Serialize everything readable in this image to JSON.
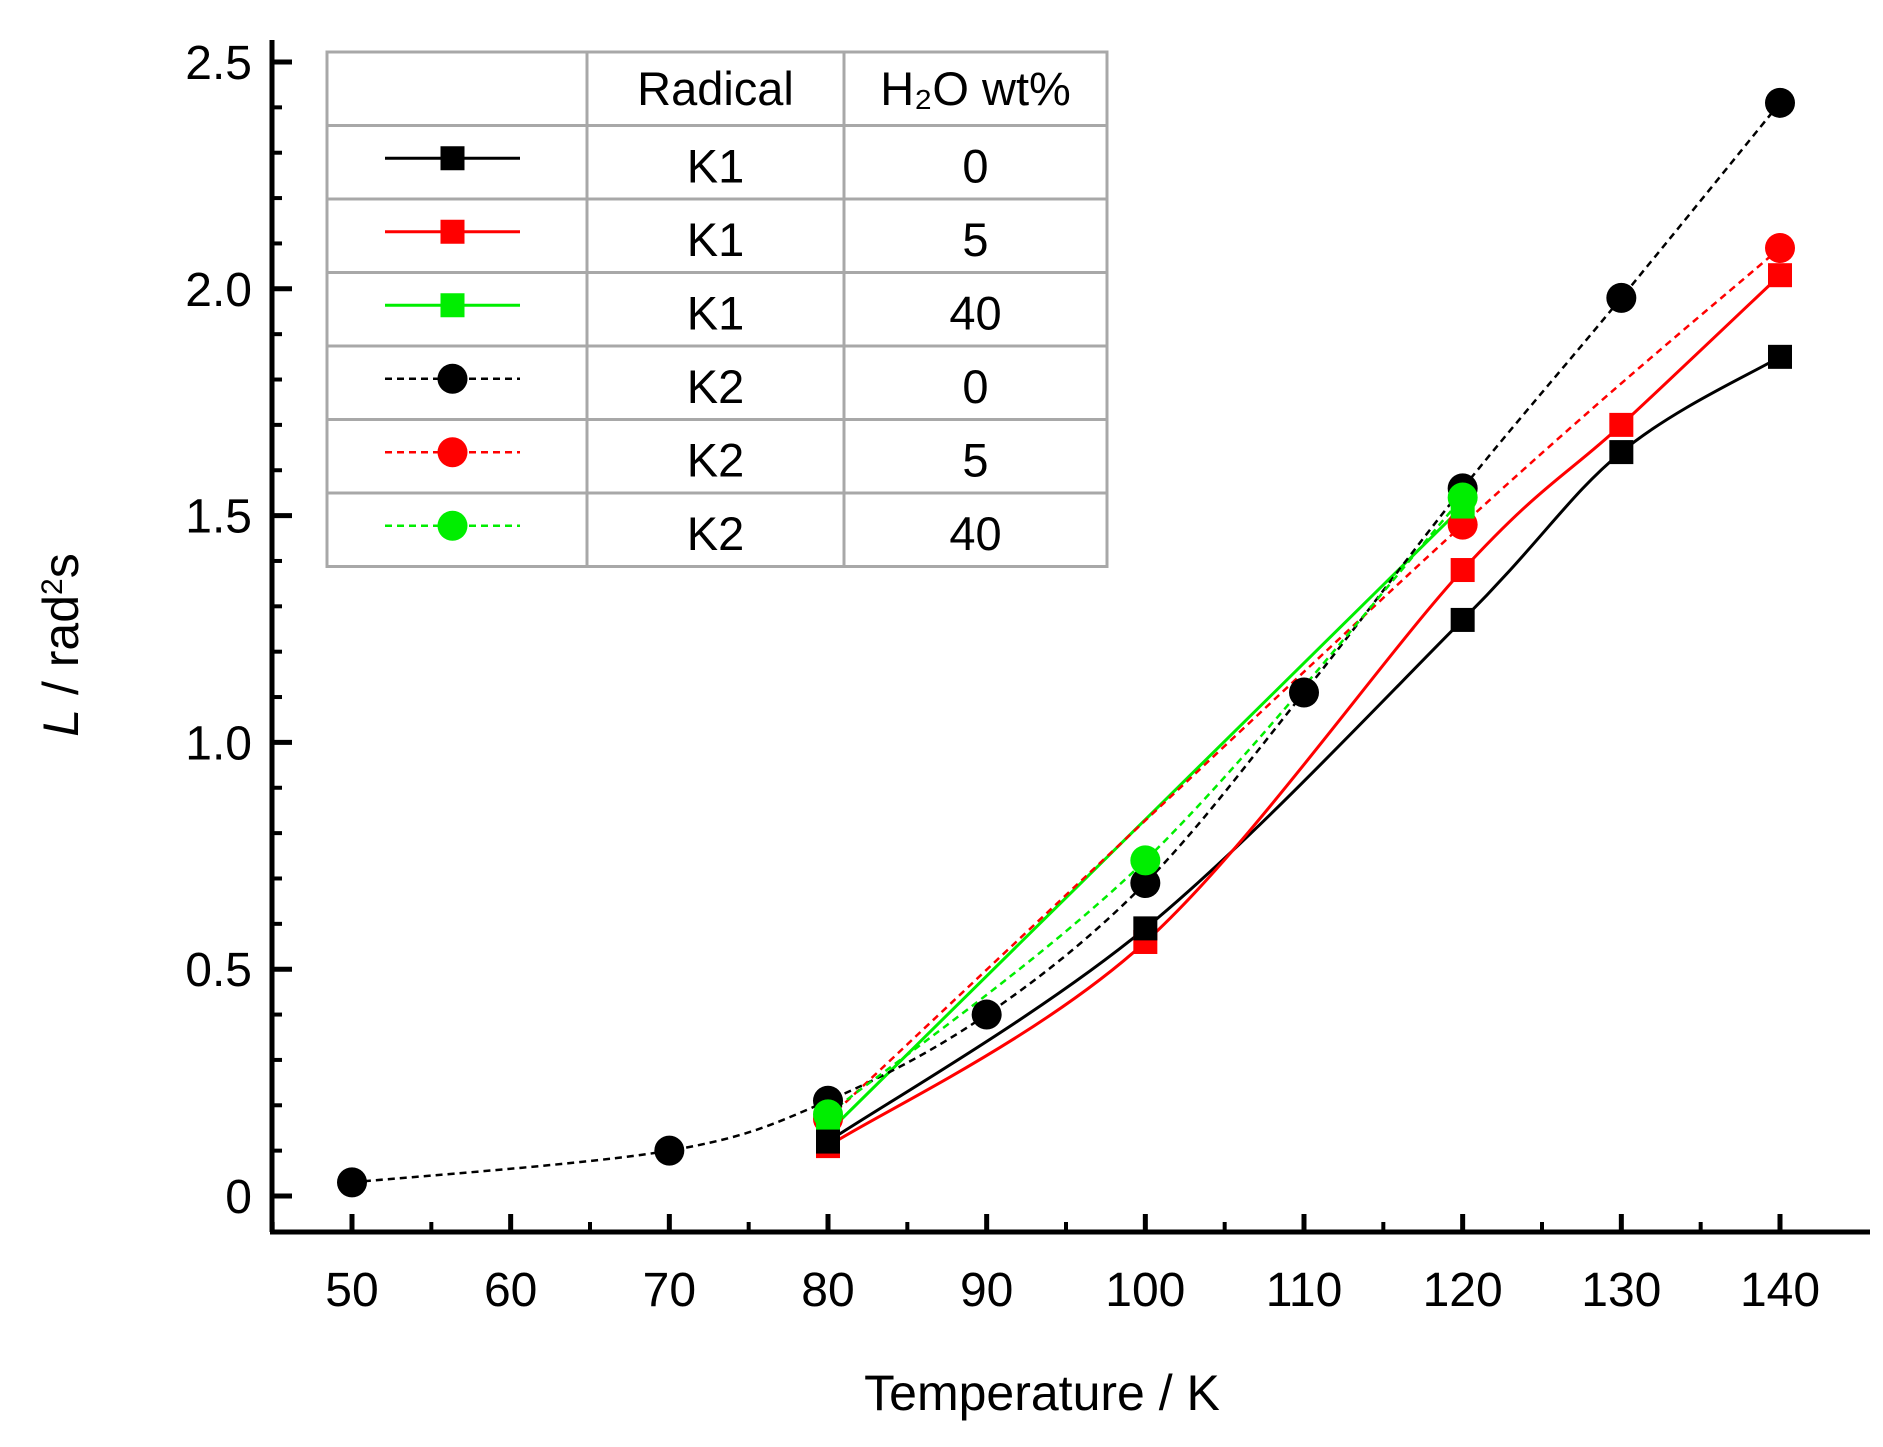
{
  "chart_data": {
    "type": "line",
    "title": "",
    "xlabel": "Temperature / K",
    "ylabel_italic": "L",
    "ylabel_rest": " / rad",
    "ylabel_sup": "2",
    "ylabel_tail": "s",
    "xlim": [
      45,
      143
    ],
    "ylim": [
      -0.08,
      2.55
    ],
    "xticks": [
      50,
      60,
      70,
      80,
      90,
      100,
      110,
      120,
      130,
      140
    ],
    "yticks": [
      0,
      0.5,
      1.0,
      1.5,
      2.0,
      2.5
    ],
    "xtick_labels": [
      "50",
      "60",
      "70",
      "80",
      "90",
      "100",
      "110",
      "120",
      "130",
      "140"
    ],
    "ytick_labels": [
      "0",
      "0.5",
      "1.0",
      "1.5",
      "2.0",
      "2.5"
    ],
    "legend": {
      "placement": "top-left",
      "headers": [
        "",
        "Radical",
        "H₂O wt%"
      ],
      "rows": [
        {
          "radical": "K1",
          "water": "0"
        },
        {
          "radical": "K1",
          "water": "5"
        },
        {
          "radical": "K1",
          "water": "40"
        },
        {
          "radical": "K2",
          "water": "0"
        },
        {
          "radical": "K2",
          "water": "5"
        },
        {
          "radical": "K2",
          "water": "40"
        }
      ]
    },
    "series": [
      {
        "name": "K1, 0 wt%",
        "color": "#000000",
        "marker": "square",
        "dashed": false,
        "x": [
          80,
          100,
          120,
          130,
          140
        ],
        "y": [
          0.12,
          0.59,
          1.27,
          1.64,
          1.85
        ]
      },
      {
        "name": "K1, 5 wt%",
        "color": "#ff0000",
        "marker": "square",
        "dashed": false,
        "x": [
          80,
          100,
          120,
          130,
          140
        ],
        "y": [
          0.11,
          0.56,
          1.38,
          1.7,
          2.03
        ]
      },
      {
        "name": "K1, 40 wt%",
        "color": "#00ee00",
        "marker": "square",
        "dashed": false,
        "x": [
          80,
          120
        ],
        "y": [
          0.14,
          1.52
        ]
      },
      {
        "name": "K2, 0 wt%",
        "color": "#000000",
        "marker": "circle",
        "dashed": true,
        "x": [
          50,
          70,
          80,
          90,
          100,
          110,
          120,
          130,
          140
        ],
        "y": [
          0.03,
          0.1,
          0.21,
          0.4,
          0.69,
          1.11,
          1.56,
          1.98,
          2.41
        ]
      },
      {
        "name": "K2, 5 wt%",
        "color": "#ff0000",
        "marker": "circle",
        "dashed": true,
        "x": [
          80,
          120,
          140
        ],
        "y": [
          0.17,
          1.48,
          2.09
        ]
      },
      {
        "name": "K2, 40 wt%",
        "color": "#00ee00",
        "marker": "circle",
        "dashed": true,
        "x": [
          80,
          100,
          120
        ],
        "y": [
          0.18,
          0.74,
          1.54
        ]
      }
    ]
  }
}
